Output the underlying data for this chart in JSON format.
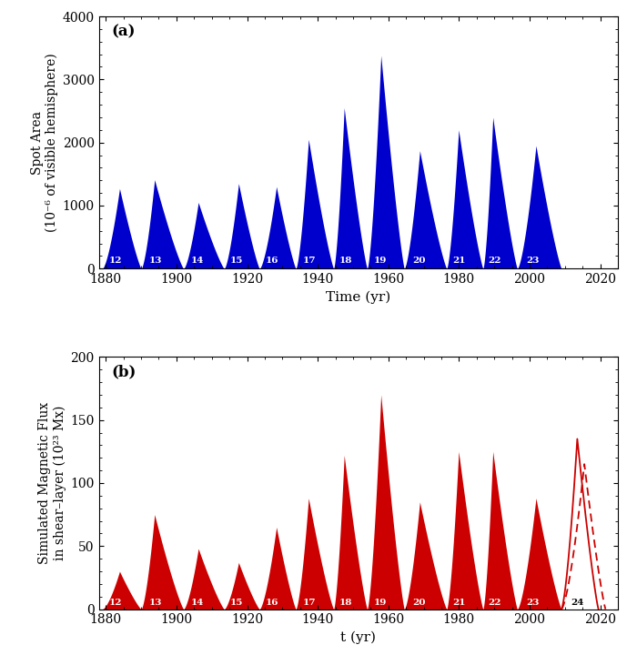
{
  "title_a": "(a)",
  "title_b": "(b)",
  "xlabel_a": "Time (yr)",
  "xlabel_b": "t (yr)",
  "ylabel_a": "Spot Area\n(10⁻⁶ of visible hemisphere)",
  "ylabel_b": "Simulated Magnetic Flux\nin shear–layer (10²³ Mx)",
  "xlim": [
    1878,
    2025
  ],
  "ylim_a": [
    0,
    4000
  ],
  "ylim_b": [
    0,
    200
  ],
  "xticks": [
    1880,
    1900,
    1920,
    1940,
    1960,
    1980,
    2000,
    2020
  ],
  "yticks_a": [
    0,
    1000,
    2000,
    3000,
    4000
  ],
  "yticks_b": [
    0,
    50,
    100,
    150,
    200
  ],
  "blue_color": "#0000cc",
  "red_color": "#cc0000",
  "background_color": "#ffffff",
  "solar_cycles": [
    {
      "num": 12,
      "start": 1879.0,
      "peak": 1883.9,
      "end": 1890.0,
      "peak_val_a": 1270,
      "peak_val_b": 30
    },
    {
      "num": 13,
      "start": 1890.0,
      "peak": 1893.8,
      "end": 1902.0,
      "peak_val_a": 1410,
      "peak_val_b": 75
    },
    {
      "num": 14,
      "start": 1902.0,
      "peak": 1906.2,
      "end": 1913.5,
      "peak_val_a": 1050,
      "peak_val_b": 48
    },
    {
      "num": 15,
      "start": 1913.5,
      "peak": 1917.6,
      "end": 1923.5,
      "peak_val_a": 1350,
      "peak_val_b": 37
    },
    {
      "num": 16,
      "start": 1923.5,
      "peak": 1928.3,
      "end": 1933.8,
      "peak_val_a": 1300,
      "peak_val_b": 65
    },
    {
      "num": 17,
      "start": 1933.8,
      "peak": 1937.4,
      "end": 1944.5,
      "peak_val_a": 2050,
      "peak_val_b": 88
    },
    {
      "num": 18,
      "start": 1944.5,
      "peak": 1947.5,
      "end": 1954.0,
      "peak_val_a": 2550,
      "peak_val_b": 122
    },
    {
      "num": 19,
      "start": 1954.0,
      "peak": 1957.9,
      "end": 1964.5,
      "peak_val_a": 3380,
      "peak_val_b": 170
    },
    {
      "num": 20,
      "start": 1964.5,
      "peak": 1968.9,
      "end": 1976.5,
      "peak_val_a": 1870,
      "peak_val_b": 85
    },
    {
      "num": 21,
      "start": 1976.5,
      "peak": 1979.9,
      "end": 1986.8,
      "peak_val_a": 2200,
      "peak_val_b": 125
    },
    {
      "num": 22,
      "start": 1986.8,
      "peak": 1989.6,
      "end": 1996.5,
      "peak_val_a": 2400,
      "peak_val_b": 125
    },
    {
      "num": 23,
      "start": 1996.5,
      "peak": 2001.8,
      "end": 2009.0,
      "peak_val_a": 1950,
      "peak_val_b": 88
    },
    {
      "num": 24,
      "start": 2009.0,
      "peak": 2013.5,
      "end": 2019.5,
      "peak_val_b_solid": 135,
      "peak_val_b_dash": 115,
      "peak_solid": 2013.5,
      "end_solid": 2019.5,
      "peak_dash": 2015.5,
      "end_dash": 2021.5
    }
  ],
  "rise_power": 1.5,
  "fall_power": 1.2
}
